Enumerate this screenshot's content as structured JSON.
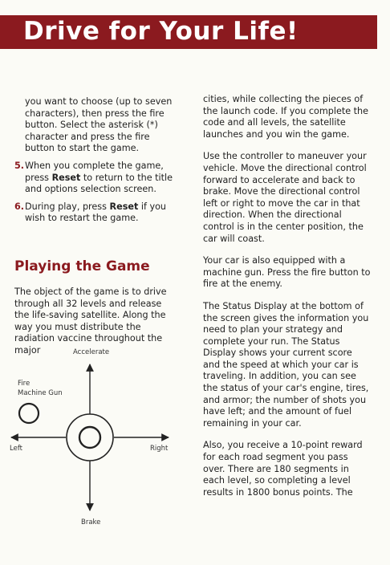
{
  "title": "Drive for Your Life!",
  "left_column": {
    "continued_text": "you want to choose (up to seven characters), then press the fire button. Select the asterisk (*) character and press the fire button to start the game.",
    "step5": {
      "number": "5.",
      "text_before": "When you complete the game, press ",
      "keyword": "Reset",
      "text_after": " to return to the title and options selection screen."
    },
    "step6": {
      "number": "6.",
      "text_before": "During play, press ",
      "keyword": "Reset",
      "text_after": " if you wish to restart the game."
    },
    "section_heading": "Playing the Game",
    "section_paragraph": "The object of the game is to drive through all 32 levels and release the life-saving satellite. Along the way you must distribute the radiation vaccine throughout the major"
  },
  "right_column": {
    "paragraphs": [
      "cities, while collecting the pieces of the launch code. If you complete the code and all levels, the satellite launches and you win the game.",
      "Use the controller to maneuver your vehicle. Move the directional control forward to accelerate and back to brake. Move the directional control left or right to move the car in that direction. When the directional control is in the center position, the car will coast.",
      "Your car is also equipped with a machine gun. Press the fire button to fire at the enemy.",
      "The Status Display at the bottom of the screen gives the information you need to plan your strategy and complete your run. The Status Display shows your current score and the speed at which your car is traveling. In addition, you can see the status of your car's engine, tires, and armor; the number of shots you have left; and the amount of fuel remaining in your car.",
      "Also, you receive a 10-point reward for each road segment you pass over. There are 180 segments in each level, so completing a level results in 1800 bonus points. The"
    ]
  },
  "diagram": {
    "accelerate": "Accelerate",
    "brake": "Brake",
    "left": "Left",
    "right": "Right",
    "fire_line1": "Fire",
    "fire_line2": "Machine Gun"
  },
  "colors": {
    "accent": "#8b1a1f",
    "paper": "#fbfbf6",
    "text": "#222222"
  }
}
